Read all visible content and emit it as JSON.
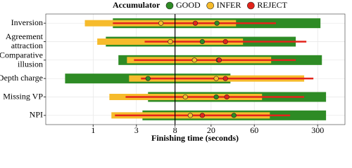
{
  "chart_data": {
    "type": "range",
    "legend_title": "Accumulator",
    "x_label": "Finishing time (seconds)",
    "categories": [
      "Inversion",
      "Agreement\nattraction",
      "Comparative\nillusion",
      "Depth charge",
      "Missing VP",
      "NPI"
    ],
    "series": [
      {
        "name": "GOOD",
        "color": "#2e8b25",
        "low": [
          1.65,
          1.38,
          1.9,
          0.49,
          4.03,
          3.5
        ],
        "high": [
          322,
          172,
          334,
          32.7,
          371,
          371
        ],
        "values": [
          23.2,
          16,
          24.1,
          4.03,
          22.8,
          35.7
        ]
      },
      {
        "name": "INFER",
        "color": "#f6bb2c",
        "low": [
          0.81,
          1.11,
          2.36,
          2.49,
          1.51,
          1.59
        ],
        "high": [
          37.7,
          45,
          92,
          213,
          73,
          89
        ],
        "values": [
          5.6,
          7.1,
          13.1,
          22.8,
          10.4,
          11.8
        ]
      },
      {
        "name": "REJECT",
        "color": "#e3241b",
        "low": [
          1.65,
          3.7,
          2.82,
          3.37,
          2.28,
          1.74
        ],
        "high": [
          104,
          225,
          172,
          269,
          213,
          149
        ],
        "values": [
          13.4,
          28.8,
          24.6,
          28.8,
          29.8,
          16
        ]
      }
    ],
    "xlim": [
      0.3,
      600
    ],
    "xticks": [
      1,
      3,
      8,
      20,
      60,
      300
    ],
    "log_x": true,
    "grid": true,
    "vline": 8
  }
}
